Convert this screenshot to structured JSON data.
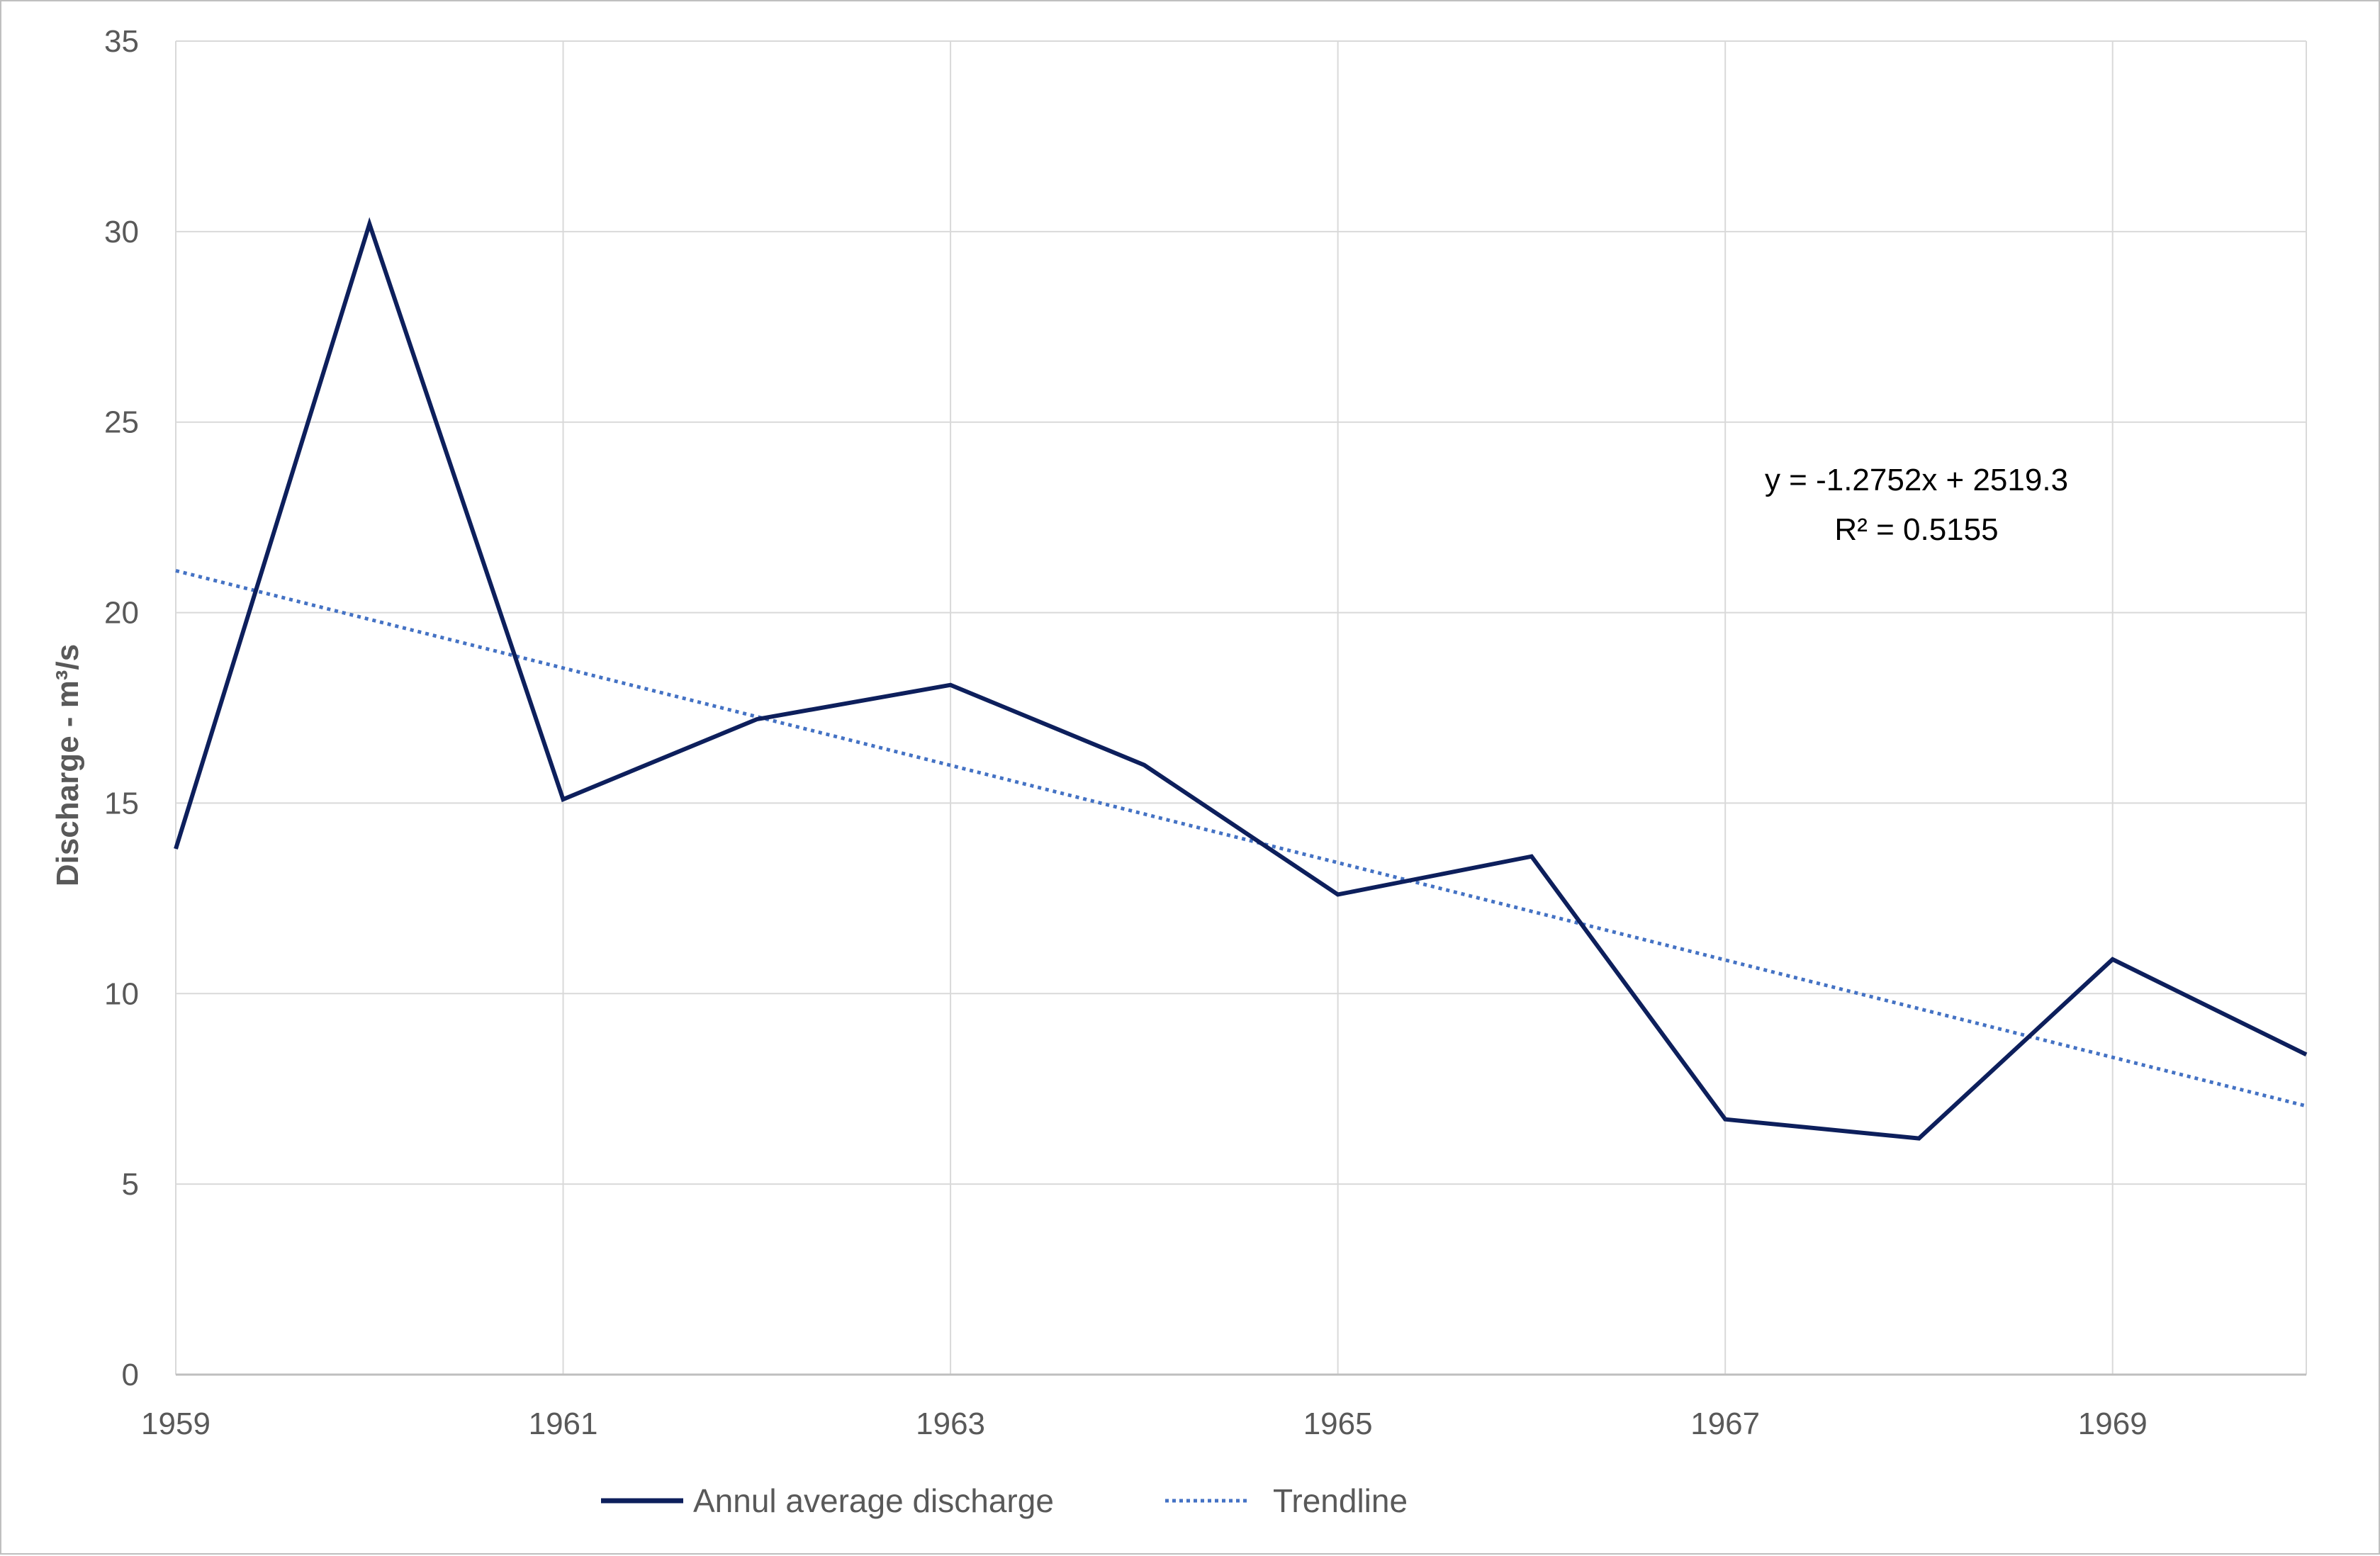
{
  "chart_data": {
    "type": "line",
    "title": "",
    "xlabel": "",
    "ylabel": "Discharge - m³/s",
    "xlim": [
      1959,
      1970
    ],
    "ylim": [
      0,
      35
    ],
    "x_ticks": [
      1959,
      1961,
      1963,
      1965,
      1967,
      1969
    ],
    "y_ticks": [
      0,
      5,
      10,
      15,
      20,
      25,
      30,
      35
    ],
    "grid": true,
    "legend_position": "bottom",
    "series": [
      {
        "name": "Annul average discharge",
        "style": "solid",
        "color": "#0d1f5c",
        "x": [
          1959,
          1960,
          1961,
          1962,
          1963,
          1964,
          1965,
          1966,
          1967,
          1968,
          1969,
          1970
        ],
        "y": [
          13.8,
          30.2,
          15.1,
          17.2,
          18.1,
          16.0,
          12.6,
          13.6,
          6.7,
          6.2,
          10.9,
          8.4
        ]
      },
      {
        "name": "Trendline",
        "style": "dotted",
        "color": "#4472c4",
        "x": [
          1959,
          1970
        ],
        "y": [
          21.1,
          7.05
        ]
      }
    ],
    "annotations": [
      "y = -1.2752x + 2519.3",
      "R² = 0.5155"
    ]
  }
}
